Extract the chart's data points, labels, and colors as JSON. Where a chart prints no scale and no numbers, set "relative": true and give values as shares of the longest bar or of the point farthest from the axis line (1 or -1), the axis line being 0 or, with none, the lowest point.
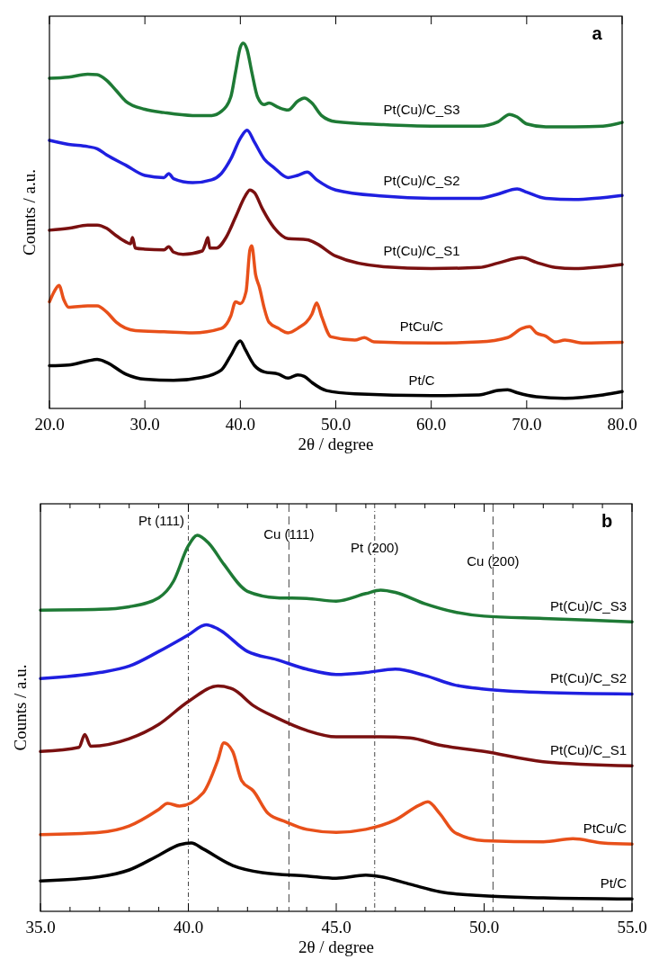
{
  "chart_data": [
    {
      "type": "line",
      "title": "a",
      "xlabel": "2θ / degree",
      "ylabel": "Counts / a.u.",
      "relative": true,
      "xlim": [
        20,
        80
      ],
      "xticks": [
        {
          "value": 20,
          "label": "20.0"
        },
        {
          "value": 30,
          "label": "30.0"
        },
        {
          "value": 40,
          "label": "40.0"
        },
        {
          "value": 50,
          "label": "50.0"
        },
        {
          "value": 60,
          "label": "60.0"
        },
        {
          "value": 70,
          "label": "70.0"
        },
        {
          "value": 80,
          "label": "80.0"
        }
      ],
      "grid": false,
      "marker": "none",
      "line_style": "solid",
      "series": [
        {
          "name": "Pt(Cu)/C_S3",
          "color": "#1e7a35",
          "x": [
            20,
            22,
            24,
            25,
            26,
            27,
            28,
            30,
            32,
            35,
            37,
            38,
            39,
            39.5,
            40,
            40.3,
            40.7,
            41.2,
            41.8,
            42.5,
            43,
            44,
            45,
            46,
            46.7,
            47.5,
            48.5,
            50,
            55,
            60,
            65,
            67,
            68.2,
            69,
            70,
            72,
            75,
            78,
            80
          ],
          "values": [
            0.904,
            0.907,
            0.915,
            0.914,
            0.898,
            0.87,
            0.841,
            0.819,
            0.81,
            0.802,
            0.802,
            0.813,
            0.853,
            0.921,
            0.989,
            1.0,
            0.983,
            0.921,
            0.853,
            0.832,
            0.836,
            0.824,
            0.817,
            0.841,
            0.85,
            0.836,
            0.802,
            0.785,
            0.777,
            0.773,
            0.773,
            0.785,
            0.805,
            0.798,
            0.779,
            0.771,
            0.771,
            0.773,
            0.783
          ]
        },
        {
          "name": "Pt(Cu)/C_S2",
          "color": "#1f1fe0",
          "x": [
            20,
            22,
            24,
            25,
            26,
            28,
            30,
            32,
            32.5,
            33,
            35,
            37,
            38,
            39,
            40,
            40.7,
            41.5,
            42.5,
            43.5,
            45,
            46,
            47,
            48,
            50,
            55,
            60,
            65,
            67,
            69,
            70,
            72,
            75,
            80
          ],
          "values": [
            0.734,
            0.723,
            0.717,
            0.711,
            0.694,
            0.666,
            0.638,
            0.632,
            0.643,
            0.629,
            0.618,
            0.626,
            0.643,
            0.683,
            0.74,
            0.762,
            0.728,
            0.683,
            0.66,
            0.632,
            0.638,
            0.647,
            0.626,
            0.598,
            0.581,
            0.575,
            0.575,
            0.587,
            0.601,
            0.592,
            0.575,
            0.572,
            0.583
          ]
        },
        {
          "name": "Pt(Cu)/C_S1",
          "color": "#7a1010",
          "x": [
            20,
            22,
            24,
            25,
            26,
            27,
            28,
            28.5,
            28.7,
            29,
            30,
            32,
            32.5,
            33,
            34,
            36,
            36.3,
            36.6,
            36.8,
            37.5,
            38.5,
            39.5,
            40.5,
            41,
            41.5,
            42.3,
            43.5,
            45,
            47,
            48,
            50,
            55,
            60,
            65,
            67,
            69.5,
            71,
            73,
            75,
            80
          ],
          "values": [
            0.488,
            0.493,
            0.502,
            0.502,
            0.493,
            0.473,
            0.456,
            0.451,
            0.468,
            0.439,
            0.436,
            0.434,
            0.443,
            0.428,
            0.422,
            0.431,
            0.447,
            0.468,
            0.439,
            0.439,
            0.468,
            0.524,
            0.581,
            0.598,
            0.59,
            0.547,
            0.496,
            0.465,
            0.462,
            0.451,
            0.417,
            0.388,
            0.383,
            0.386,
            0.398,
            0.413,
            0.4,
            0.386,
            0.383,
            0.394
          ]
        },
        {
          "name": "PtCu/C",
          "color": "#e8501a",
          "x": [
            20,
            20.5,
            21,
            21.5,
            22,
            24,
            25,
            26,
            27,
            29,
            32,
            35,
            38,
            39,
            39.5,
            40,
            40.6,
            41,
            41.2,
            41.6,
            42,
            42.5,
            43,
            44,
            45,
            46,
            47.5,
            48,
            48.5,
            49.5,
            52,
            53,
            54,
            60,
            65,
            68,
            69.5,
            70.3,
            71,
            72,
            73,
            74,
            76,
            80
          ],
          "values": [
            0.292,
            0.32,
            0.337,
            0.298,
            0.277,
            0.281,
            0.281,
            0.264,
            0.236,
            0.213,
            0.21,
            0.207,
            0.219,
            0.253,
            0.292,
            0.287,
            0.32,
            0.434,
            0.445,
            0.366,
            0.332,
            0.275,
            0.236,
            0.219,
            0.207,
            0.219,
            0.258,
            0.289,
            0.253,
            0.196,
            0.187,
            0.194,
            0.182,
            0.179,
            0.182,
            0.194,
            0.219,
            0.224,
            0.207,
            0.198,
            0.182,
            0.187,
            0.179,
            0.181
          ]
        },
        {
          "name": "Pt/C",
          "color": "#000000",
          "x": [
            20,
            22,
            24,
            25,
            26,
            28,
            30,
            33,
            36,
            38,
            39,
            40,
            40.5,
            41.5,
            42.5,
            44,
            45,
            46,
            46.7,
            47.5,
            49,
            52,
            60,
            65,
            67,
            68,
            69,
            71,
            74,
            78,
            80
          ],
          "values": [
            0.117,
            0.119,
            0.13,
            0.134,
            0.126,
            0.094,
            0.08,
            0.077,
            0.085,
            0.105,
            0.145,
            0.185,
            0.162,
            0.117,
            0.1,
            0.094,
            0.083,
            0.092,
            0.088,
            0.071,
            0.049,
            0.04,
            0.035,
            0.037,
            0.049,
            0.051,
            0.043,
            0.032,
            0.028,
            0.037,
            0.046
          ]
        }
      ]
    },
    {
      "type": "line",
      "title": "b",
      "xlabel": "2θ / degree",
      "ylabel": "Counts / a.u.",
      "relative": true,
      "xlim": [
        35,
        55
      ],
      "xticks": [
        {
          "value": 35,
          "label": "35.0"
        },
        {
          "value": 36,
          "label": null
        },
        {
          "value": 37,
          "label": null
        },
        {
          "value": 38,
          "label": null
        },
        {
          "value": 39,
          "label": null
        },
        {
          "value": 40,
          "label": "40.0"
        },
        {
          "value": 41,
          "label": null
        },
        {
          "value": 42,
          "label": null
        },
        {
          "value": 43,
          "label": null
        },
        {
          "value": 44,
          "label": null
        },
        {
          "value": 45,
          "label": "45.0"
        },
        {
          "value": 46,
          "label": null
        },
        {
          "value": 47,
          "label": null
        },
        {
          "value": 48,
          "label": null
        },
        {
          "value": 49,
          "label": null
        },
        {
          "value": 50,
          "label": "50.0"
        },
        {
          "value": 51,
          "label": null
        },
        {
          "value": 52,
          "label": null
        },
        {
          "value": 53,
          "label": null
        },
        {
          "value": 54,
          "label": null
        },
        {
          "value": 55,
          "label": "55.0"
        }
      ],
      "grid": false,
      "marker": "none",
      "line_style": "solid",
      "ref_lines": [
        {
          "axis": "x",
          "value": 40.0,
          "label": "Pt (111)",
          "color": "#444444",
          "line_style": "dotted"
        },
        {
          "axis": "x",
          "value": 43.4,
          "label": "Cu (111)",
          "color": "#444444",
          "line_style": "dashed"
        },
        {
          "axis": "x",
          "value": 46.3,
          "label": "Pt (200)",
          "color": "#444444",
          "line_style": "dotted"
        },
        {
          "axis": "x",
          "value": 50.3,
          "label": "Cu (200)",
          "color": "#444444",
          "line_style": "dashed"
        }
      ],
      "series": [
        {
          "name": "Pt(Cu)/C_S3",
          "color": "#1e7a35",
          "x": [
            35,
            37,
            38,
            39,
            39.5,
            40,
            40.3,
            40.7,
            41.2,
            42,
            43,
            44,
            45,
            46,
            46.5,
            47,
            48,
            49,
            50,
            52,
            55
          ],
          "values": [
            0.801,
            0.803,
            0.81,
            0.834,
            0.878,
            0.972,
            1.0,
            0.978,
            0.923,
            0.851,
            0.834,
            0.832,
            0.825,
            0.845,
            0.854,
            0.848,
            0.818,
            0.796,
            0.785,
            0.779,
            0.77
          ]
        },
        {
          "name": "Pt(Cu)/C_S2",
          "color": "#1f1fe0",
          "x": [
            35,
            37,
            38,
            39,
            40,
            40.6,
            41,
            42,
            43,
            44,
            45,
            46,
            47,
            48,
            49,
            50,
            52,
            55
          ],
          "values": [
            0.619,
            0.635,
            0.652,
            0.691,
            0.735,
            0.762,
            0.751,
            0.691,
            0.669,
            0.644,
            0.63,
            0.635,
            0.644,
            0.627,
            0.602,
            0.591,
            0.582,
            0.578
          ]
        },
        {
          "name": "Pt(Cu)/C_S1",
          "color": "#7a1010",
          "x": [
            35,
            36.3,
            36.5,
            36.7,
            38,
            39,
            40,
            41,
            41.5,
            42.2,
            43,
            44,
            45,
            46.5,
            47.5,
            48.5,
            50,
            52,
            55
          ],
          "values": [
            0.425,
            0.436,
            0.47,
            0.439,
            0.459,
            0.497,
            0.558,
            0.599,
            0.591,
            0.547,
            0.514,
            0.481,
            0.464,
            0.464,
            0.461,
            0.442,
            0.425,
            0.398,
            0.387
          ]
        },
        {
          "name": "PtCu/C",
          "color": "#e8501a",
          "x": [
            35,
            37,
            38,
            39,
            39.3,
            39.7,
            40.5,
            41,
            41.2,
            41.5,
            41.8,
            42.2,
            42.7,
            43.3,
            44,
            45,
            46,
            47,
            47.8,
            48.1,
            48.5,
            49,
            50,
            52,
            53,
            54,
            55
          ],
          "values": [
            0.204,
            0.21,
            0.227,
            0.271,
            0.287,
            0.28,
            0.315,
            0.403,
            0.448,
            0.425,
            0.348,
            0.32,
            0.26,
            0.238,
            0.218,
            0.21,
            0.218,
            0.243,
            0.282,
            0.291,
            0.26,
            0.21,
            0.188,
            0.185,
            0.193,
            0.182,
            0.179
          ]
        },
        {
          "name": "Pt/C",
          "color": "#000000",
          "x": [
            35,
            37,
            38,
            39,
            39.7,
            40.1,
            40.5,
            41.5,
            42.5,
            44,
            45,
            46,
            46.5,
            47.5,
            48.5,
            50,
            52,
            55
          ],
          "values": [
            0.081,
            0.092,
            0.11,
            0.149,
            0.177,
            0.182,
            0.166,
            0.122,
            0.103,
            0.094,
            0.088,
            0.096,
            0.092,
            0.072,
            0.052,
            0.041,
            0.036,
            0.033
          ]
        }
      ]
    }
  ]
}
